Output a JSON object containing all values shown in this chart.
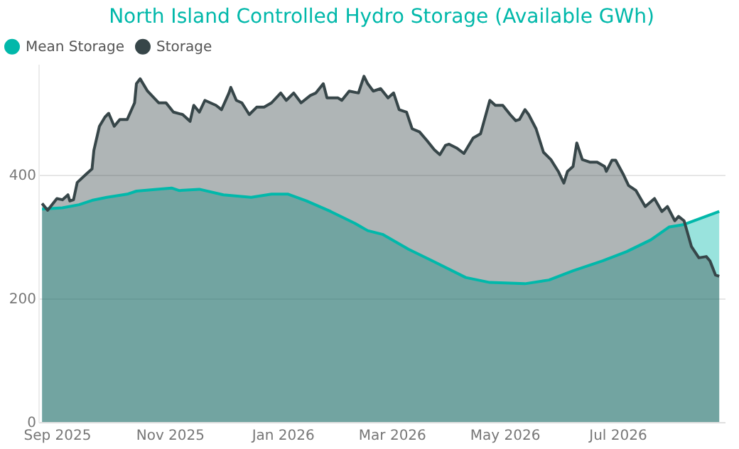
{
  "chart_data": {
    "type": "area",
    "title": "North Island Controlled Hydro Storage (Available GWh)",
    "xlim": [
      "2025-08-22",
      "2026-08-28"
    ],
    "xticks": [
      {
        "value": "2025-09-01",
        "label": "Sep 2025"
      },
      {
        "value": "2025-11-01",
        "label": "Nov 2025"
      },
      {
        "value": "2026-01-01",
        "label": "Jan 2026"
      },
      {
        "value": "2026-03-01",
        "label": "Mar 2026"
      },
      {
        "value": "2026-05-01",
        "label": "May 2026"
      },
      {
        "value": "2026-07-01",
        "label": "Jul 2026"
      }
    ],
    "ylim": [
      0,
      580
    ],
    "yticks": [
      0,
      200,
      400
    ],
    "grid": "y",
    "legend": "top left",
    "series": [
      {
        "name": "Mean Storage",
        "color": "#01b8aa",
        "x": [
          "2025-08-24",
          "2025-09-04",
          "2025-09-13",
          "2025-09-20",
          "2025-09-28",
          "2025-10-09",
          "2025-10-14",
          "2025-10-25",
          "2025-11-02",
          "2025-11-06",
          "2025-11-17",
          "2025-11-30",
          "2025-12-15",
          "2025-12-26",
          "2026-01-04",
          "2026-01-14",
          "2026-01-27",
          "2026-02-09",
          "2026-02-16",
          "2026-02-24",
          "2026-03-10",
          "2026-03-23",
          "2026-04-10",
          "2026-04-23",
          "2026-05-12",
          "2026-05-25",
          "2026-06-07",
          "2026-06-23",
          "2026-07-06",
          "2026-07-19",
          "2026-07-29",
          "2026-08-06",
          "2026-08-25"
        ],
        "values": [
          345,
          347,
          352,
          359,
          364,
          369,
          374,
          377,
          379,
          375,
          377,
          368,
          364,
          369,
          369,
          358,
          341,
          322,
          310,
          304,
          280,
          261,
          234,
          226,
          224,
          230,
          245,
          261,
          276,
          295,
          316,
          320,
          341
        ]
      },
      {
        "name": "Storage",
        "color": "#374649",
        "x": [
          "2025-08-24",
          "2025-08-27",
          "2025-09-01",
          "2025-09-04",
          "2025-09-07",
          "2025-09-08",
          "2025-09-10",
          "2025-09-12",
          "2025-09-17",
          "2025-09-20",
          "2025-09-21",
          "2025-09-24",
          "2025-09-27",
          "2025-09-29",
          "2025-10-02",
          "2025-10-05",
          "2025-10-09",
          "2025-10-13",
          "2025-10-14",
          "2025-10-16",
          "2025-10-20",
          "2025-10-26",
          "2025-10-30",
          "2025-11-03",
          "2025-11-08",
          "2025-11-12",
          "2025-11-14",
          "2025-11-17",
          "2025-11-20",
          "2025-11-26",
          "2025-11-29",
          "2025-12-03",
          "2025-12-04",
          "2025-12-07",
          "2025-12-10",
          "2025-12-14",
          "2025-12-18",
          "2025-12-22",
          "2025-12-26",
          "2025-12-31",
          "2026-01-03",
          "2026-01-07",
          "2026-01-11",
          "2026-01-16",
          "2026-01-19",
          "2026-01-23",
          "2026-01-25",
          "2026-01-31",
          "2026-02-02",
          "2026-02-06",
          "2026-02-11",
          "2026-02-14",
          "2026-02-16",
          "2026-02-19",
          "2026-02-23",
          "2026-02-27",
          "2026-03-02",
          "2026-03-05",
          "2026-03-09",
          "2026-03-12",
          "2026-03-16",
          "2026-03-20",
          "2026-03-24",
          "2026-03-27",
          "2026-03-30",
          "2026-04-01",
          "2026-04-05",
          "2026-04-09",
          "2026-04-14",
          "2026-04-18",
          "2026-04-23",
          "2026-04-26",
          "2026-04-30",
          "2026-05-04",
          "2026-05-07",
          "2026-05-09",
          "2026-05-12",
          "2026-05-14",
          "2026-05-18",
          "2026-05-22",
          "2026-05-26",
          "2026-05-30",
          "2026-06-02",
          "2026-06-04",
          "2026-06-07",
          "2026-06-09",
          "2026-06-12",
          "2026-06-16",
          "2026-06-20",
          "2026-06-24",
          "2026-06-25",
          "2026-06-28",
          "2026-06-30",
          "2026-07-04",
          "2026-07-07",
          "2026-07-11",
          "2026-07-16",
          "2026-07-21",
          "2026-07-25",
          "2026-07-28",
          "2026-08-01",
          "2026-08-03",
          "2026-08-06",
          "2026-08-10",
          "2026-08-14",
          "2026-08-18",
          "2026-08-20",
          "2026-08-23",
          "2026-08-25"
        ],
        "values": [
          354,
          343,
          362,
          360,
          368,
          358,
          360,
          388,
          402,
          410,
          440,
          479,
          494,
          500,
          479,
          490,
          490,
          517,
          548,
          556,
          536,
          517,
          517,
          502,
          498,
          487,
          513,
          502,
          521,
          513,
          506,
          533,
          542,
          521,
          517,
          498,
          510,
          510,
          517,
          533,
          521,
          533,
          517,
          529,
          533,
          548,
          525,
          525,
          521,
          536,
          533,
          560,
          548,
          536,
          540,
          525,
          533,
          506,
          502,
          475,
          470,
          456,
          441,
          433,
          448,
          450,
          444,
          435,
          460,
          467,
          521,
          513,
          513,
          498,
          488,
          490,
          506,
          498,
          475,
          437,
          425,
          406,
          387,
          406,
          414,
          452,
          425,
          421,
          421,
          414,
          406,
          424,
          424,
          402,
          383,
          375,
          349,
          362,
          341,
          349,
          326,
          333,
          326,
          284,
          266,
          268,
          261,
          238,
          236
        ]
      }
    ]
  }
}
